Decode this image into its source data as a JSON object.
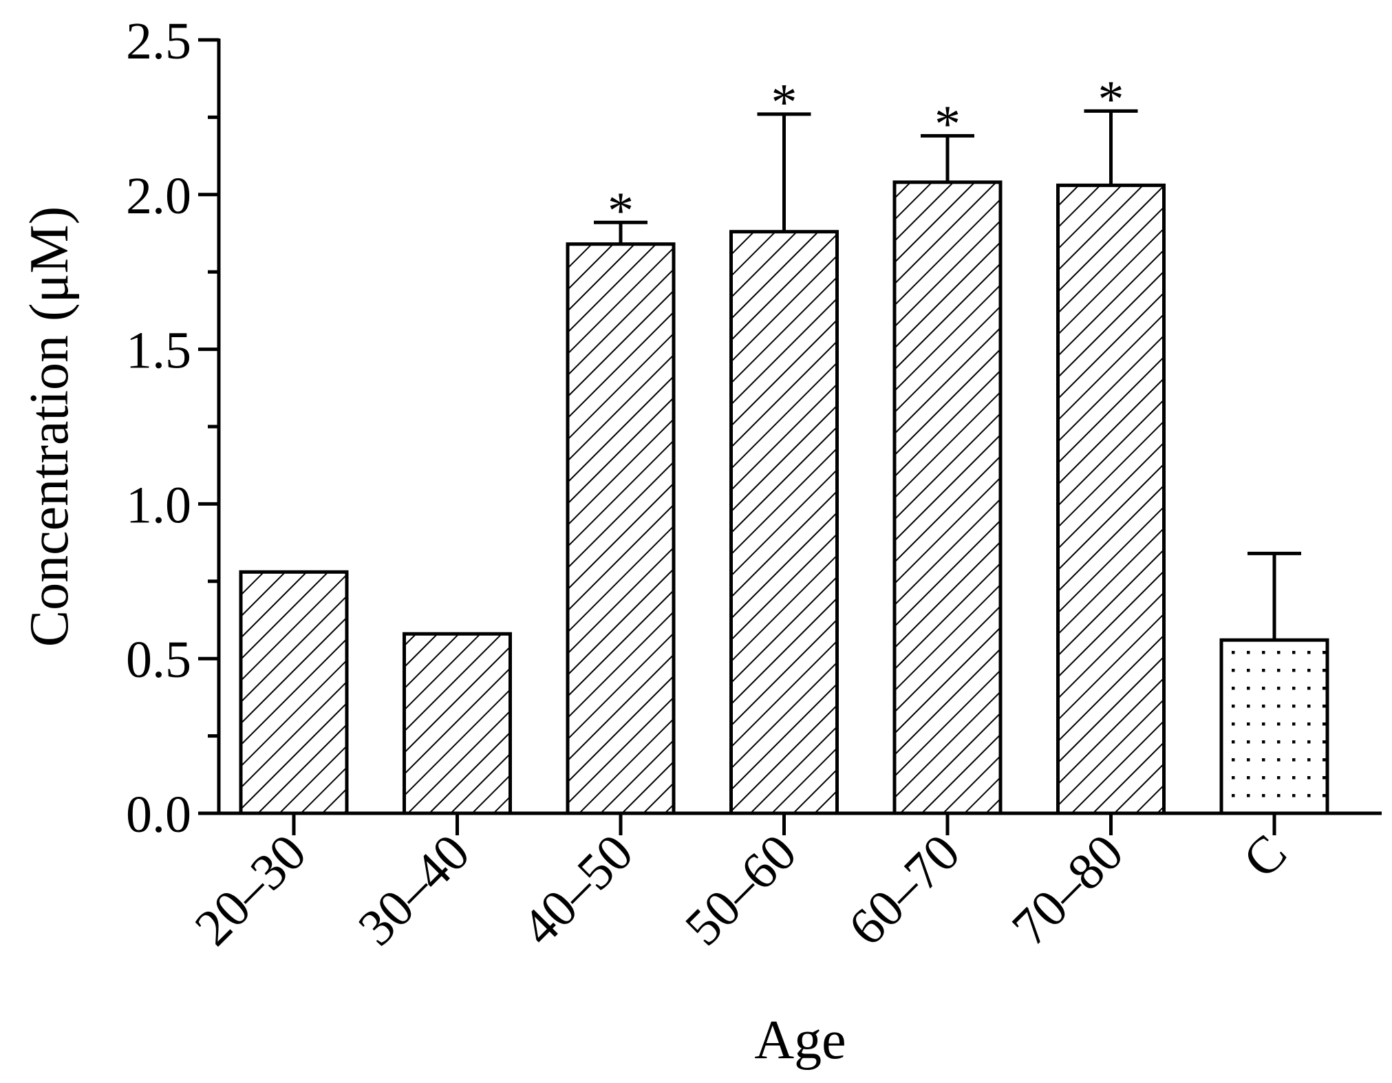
{
  "chart_data": {
    "type": "bar",
    "title": "",
    "xlabel": "Age",
    "ylabel": "Concentration (μM)",
    "ylim": [
      0,
      2.5
    ],
    "yticks": [
      "0.0",
      "0.5",
      "1.0",
      "1.5",
      "2.0",
      "2.5"
    ],
    "grid": false,
    "categories": [
      "20–30",
      "30–40",
      "40–50",
      "50–60",
      "60–70",
      "70–80",
      "C"
    ],
    "values": [
      0.78,
      0.58,
      1.84,
      1.88,
      2.04,
      2.03,
      0.56
    ],
    "error_upper": [
      null,
      null,
      1.91,
      2.26,
      2.19,
      2.27,
      0.84
    ],
    "significance": [
      "",
      "",
      "*",
      "*",
      "*",
      "*",
      ""
    ],
    "patterns": [
      "hatch",
      "hatch",
      "hatch",
      "hatch",
      "hatch",
      "hatch",
      "dots"
    ],
    "colors": {
      "bar_stroke": "#000000",
      "bar_fill": "#ffffff",
      "pattern": "#000000"
    }
  }
}
